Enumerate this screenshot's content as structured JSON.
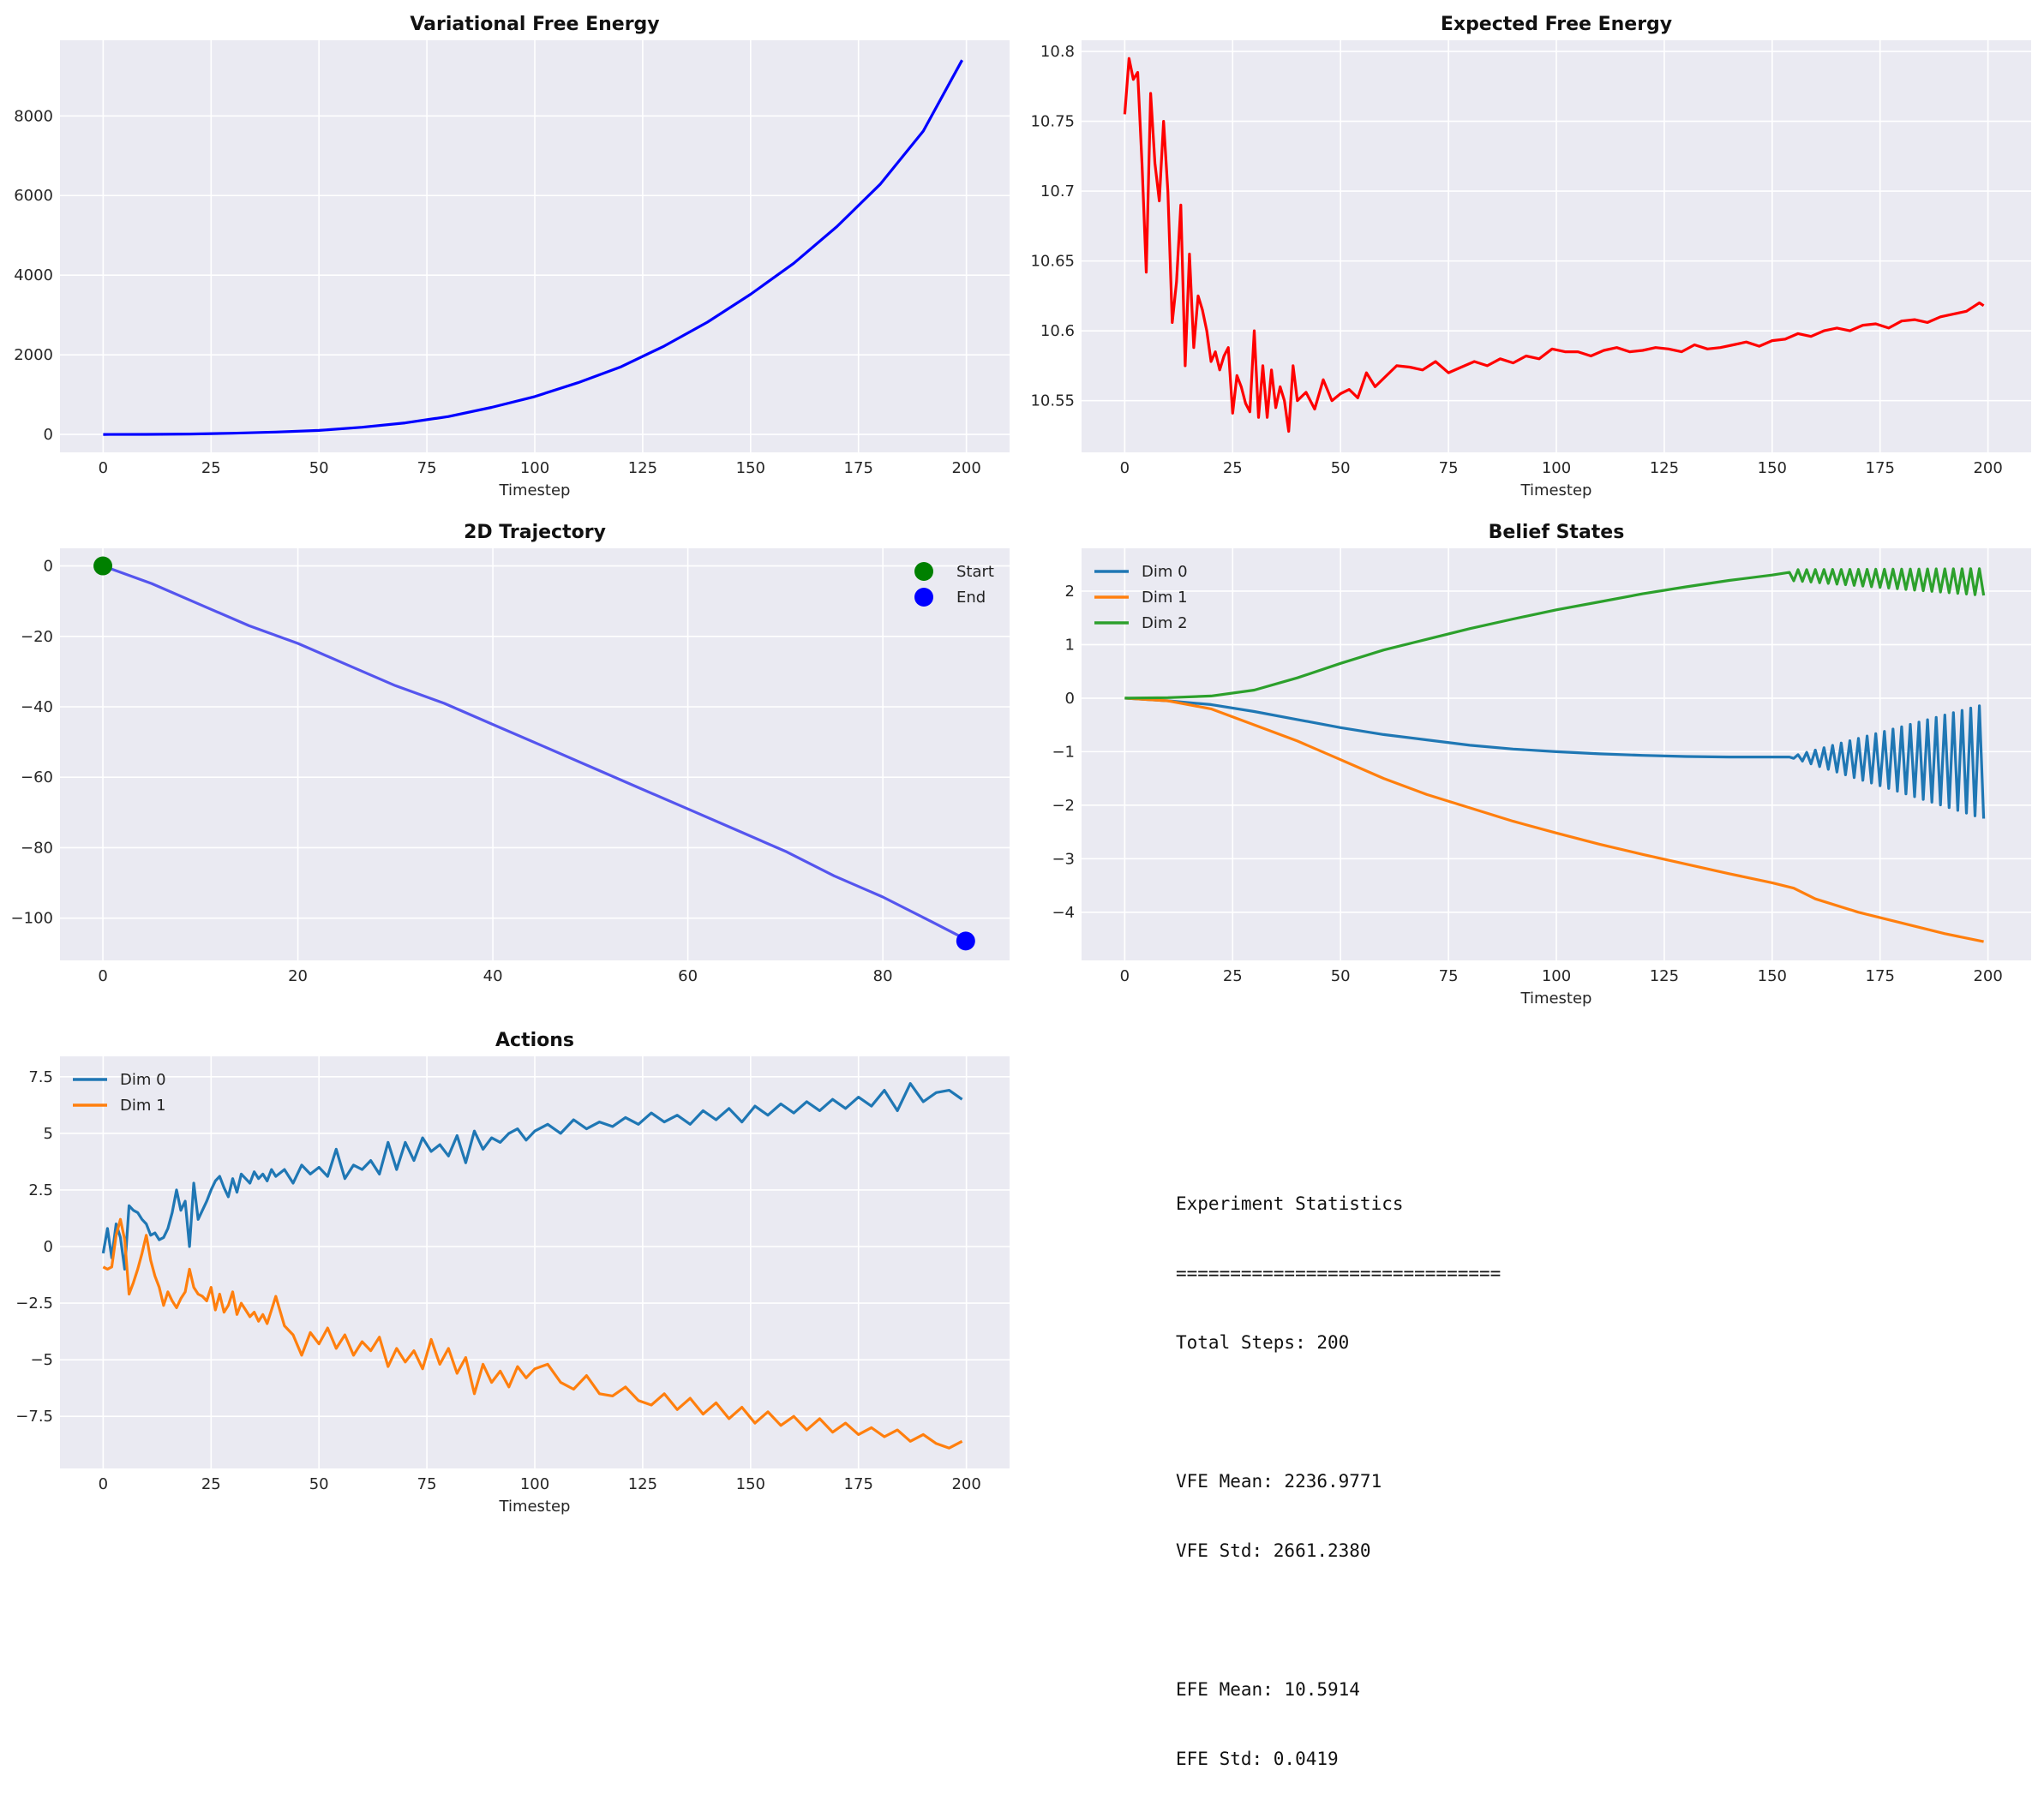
{
  "colors": {
    "axes_bg": "#eaeaf2",
    "grid": "#ffffff",
    "tick_text": "#262626",
    "vfe_line": "#0000ff",
    "efe_line": "#ff0000",
    "trajectory_line": "#5555ee",
    "start_marker": "#008000",
    "end_marker": "#0000ff",
    "dim0": "#1f77b4",
    "dim1": "#ff7f0e",
    "dim2": "#2ca02c"
  },
  "chart_data": [
    {
      "id": "vfe",
      "type": "line",
      "title": "Variational Free Energy",
      "xlabel": "Timestep",
      "ylabel": "",
      "xlim": [
        -10,
        210
      ],
      "ylim": [
        -450,
        9900
      ],
      "xticks": [
        0,
        25,
        50,
        75,
        100,
        125,
        150,
        175,
        200
      ],
      "yticks": [
        0,
        2000,
        4000,
        6000,
        8000
      ],
      "grid": true,
      "series": [
        {
          "color": "vfe_line",
          "x": [
            0,
            10,
            20,
            30,
            40,
            50,
            60,
            70,
            80,
            90,
            100,
            110,
            120,
            130,
            140,
            150,
            160,
            170,
            180,
            190,
            199
          ],
          "y": [
            0,
            2,
            10,
            30,
            60,
            100,
            180,
            290,
            450,
            680,
            950,
            1300,
            1700,
            2220,
            2820,
            3520,
            4300,
            5220,
            6280,
            7620,
            9400
          ]
        }
      ]
    },
    {
      "id": "efe",
      "type": "line",
      "title": "Expected Free Energy",
      "xlabel": "Timestep",
      "ylabel": "",
      "xlim": [
        -10,
        210
      ],
      "ylim": [
        10.513,
        10.808
      ],
      "xticks": [
        0,
        25,
        50,
        75,
        100,
        125,
        150,
        175,
        200
      ],
      "yticks": [
        10.55,
        10.6,
        10.65,
        10.7,
        10.75,
        10.8
      ],
      "grid": true,
      "series": [
        {
          "color": "efe_line",
          "x": [
            0,
            1,
            2,
            3,
            4,
            5,
            6,
            7,
            8,
            9,
            10,
            11,
            12,
            13,
            14,
            15,
            16,
            17,
            18,
            19,
            20,
            21,
            22,
            23,
            24,
            25,
            26,
            27,
            28,
            29,
            30,
            31,
            32,
            33,
            34,
            35,
            36,
            37,
            38,
            39,
            40,
            42,
            44,
            46,
            48,
            50,
            52,
            54,
            56,
            58,
            60,
            63,
            66,
            69,
            72,
            75,
            78,
            81,
            84,
            87,
            90,
            93,
            96,
            99,
            102,
            105,
            108,
            111,
            114,
            117,
            120,
            123,
            126,
            129,
            132,
            135,
            138,
            141,
            144,
            147,
            150,
            153,
            156,
            159,
            162,
            165,
            168,
            171,
            174,
            177,
            180,
            183,
            186,
            189,
            192,
            195,
            198,
            199
          ],
          "y": [
            10.755,
            10.795,
            10.78,
            10.785,
            10.72,
            10.642,
            10.77,
            10.72,
            10.693,
            10.75,
            10.7,
            10.606,
            10.635,
            10.69,
            10.575,
            10.655,
            10.588,
            10.625,
            10.615,
            10.6,
            10.578,
            10.585,
            10.572,
            10.582,
            10.588,
            10.541,
            10.568,
            10.56,
            10.548,
            10.542,
            10.6,
            10.538,
            10.575,
            10.538,
            10.572,
            10.545,
            10.56,
            10.55,
            10.528,
            10.575,
            10.55,
            10.556,
            10.544,
            10.565,
            10.55,
            10.555,
            10.558,
            10.552,
            10.57,
            10.56,
            10.566,
            10.575,
            10.574,
            10.572,
            10.578,
            10.57,
            10.574,
            10.578,
            10.575,
            10.58,
            10.577,
            10.582,
            10.58,
            10.587,
            10.585,
            10.585,
            10.582,
            10.586,
            10.588,
            10.585,
            10.586,
            10.588,
            10.587,
            10.585,
            10.59,
            10.587,
            10.588,
            10.59,
            10.592,
            10.589,
            10.593,
            10.594,
            10.598,
            10.596,
            10.6,
            10.602,
            10.6,
            10.604,
            10.605,
            10.602,
            10.607,
            10.608,
            10.606,
            10.61,
            10.612,
            10.614,
            10.62,
            10.618
          ]
        }
      ]
    },
    {
      "id": "trajectory",
      "type": "line",
      "title": "2D Trajectory",
      "xlabel": "",
      "ylabel": "",
      "xlim": [
        -4.4,
        93
      ],
      "ylim": [
        -112,
        5
      ],
      "xticks": [
        0,
        20,
        40,
        60,
        80
      ],
      "yticks": [
        0,
        -20,
        -40,
        -60,
        -80,
        -100
      ],
      "grid": true,
      "legend": "top-right",
      "legend_entries": [
        "Start",
        "End"
      ],
      "series": [
        {
          "color": "trajectory_line",
          "x": [
            0,
            5,
            10,
            15,
            20,
            25,
            30,
            35,
            40,
            45,
            50,
            55,
            60,
            65,
            70,
            75,
            80,
            85,
            88.5
          ],
          "y": [
            0,
            -5,
            -11,
            -17,
            -22,
            -28,
            -34,
            -39,
            -45,
            -51,
            -57,
            -63,
            -69,
            -75,
            -81,
            -88,
            -94,
            -101,
            -106
          ]
        }
      ],
      "markers": [
        {
          "label": "Start",
          "x": 0,
          "y": 0,
          "color": "start_marker"
        },
        {
          "label": "End",
          "x": 88.5,
          "y": -106.5,
          "color": "end_marker"
        }
      ]
    },
    {
      "id": "beliefs",
      "type": "line",
      "title": "Belief States",
      "xlabel": "Timestep",
      "ylabel": "",
      "xlim": [
        -10,
        210
      ],
      "ylim": [
        -4.9,
        2.8
      ],
      "xticks": [
        0,
        25,
        50,
        75,
        100,
        125,
        150,
        175,
        200
      ],
      "yticks": [
        2,
        1,
        0,
        -1,
        -2,
        -3,
        -4
      ],
      "grid": true,
      "legend": "top-left",
      "legend_entries": [
        "Dim 0",
        "Dim 1",
        "Dim 2"
      ],
      "series": [
        {
          "name": "Dim 0",
          "color": "dim0",
          "x": [
            0,
            10,
            20,
            30,
            40,
            50,
            60,
            70,
            80,
            90,
            100,
            110,
            120,
            130,
            140,
            150,
            154
          ],
          "y": [
            0,
            -0.05,
            -0.12,
            -0.25,
            -0.4,
            -0.55,
            -0.68,
            -0.78,
            -0.88,
            -0.95,
            -1.0,
            -1.04,
            -1.07,
            -1.09,
            -1.1,
            -1.1,
            -1.1
          ],
          "oscillation": {
            "from": 154,
            "to": 199,
            "start_lo": -1.1,
            "start_hi": -1.1,
            "end_lo": -2.25,
            "end_hi": -0.12
          }
        },
        {
          "name": "Dim 1",
          "color": "dim1",
          "x": [
            0,
            10,
            20,
            30,
            40,
            50,
            60,
            70,
            80,
            90,
            100,
            110,
            120,
            130,
            140,
            150,
            155,
            160,
            170,
            180,
            190,
            199
          ],
          "y": [
            0,
            -0.05,
            -0.2,
            -0.5,
            -0.8,
            -1.15,
            -1.5,
            -1.8,
            -2.05,
            -2.3,
            -2.52,
            -2.73,
            -2.92,
            -3.1,
            -3.28,
            -3.45,
            -3.55,
            -3.75,
            -4.0,
            -4.2,
            -4.4,
            -4.55
          ]
        },
        {
          "name": "Dim 2",
          "color": "dim2",
          "x": [
            0,
            10,
            20,
            30,
            40,
            50,
            60,
            70,
            80,
            90,
            100,
            110,
            120,
            130,
            140,
            150,
            154
          ],
          "y": [
            0,
            0.01,
            0.04,
            0.15,
            0.38,
            0.65,
            0.9,
            1.1,
            1.3,
            1.48,
            1.65,
            1.8,
            1.95,
            2.08,
            2.2,
            2.3,
            2.35
          ],
          "oscillation": {
            "from": 154,
            "to": 199,
            "start_lo": 2.2,
            "start_hi": 2.4,
            "end_lo": 1.92,
            "end_hi": 2.42
          }
        }
      ]
    },
    {
      "id": "actions",
      "type": "line",
      "title": "Actions",
      "xlabel": "Timestep",
      "ylabel": "",
      "xlim": [
        -10,
        210
      ],
      "ylim": [
        -9.8,
        8.4
      ],
      "xticks": [
        0,
        25,
        50,
        75,
        100,
        125,
        150,
        175,
        200
      ],
      "yticks": [
        7.5,
        5.0,
        2.5,
        0.0,
        -2.5,
        -5.0,
        -7.5
      ],
      "grid": true,
      "legend": "top-left",
      "legend_entries": [
        "Dim 0",
        "Dim 1"
      ],
      "series": [
        {
          "name": "Dim 0",
          "color": "dim0",
          "x": [
            0,
            1,
            2,
            3,
            4,
            5,
            6,
            7,
            8,
            9,
            10,
            11,
            12,
            13,
            14,
            15,
            16,
            17,
            18,
            19,
            20,
            21,
            22,
            23,
            24,
            25,
            26,
            27,
            28,
            29,
            30,
            31,
            32,
            33,
            34,
            35,
            36,
            37,
            38,
            39,
            40,
            42,
            44,
            46,
            48,
            50,
            52,
            54,
            56,
            58,
            60,
            62,
            64,
            66,
            68,
            70,
            72,
            74,
            76,
            78,
            80,
            82,
            84,
            86,
            88,
            90,
            92,
            94,
            96,
            98,
            100,
            103,
            106,
            109,
            112,
            115,
            118,
            121,
            124,
            127,
            130,
            133,
            136,
            139,
            142,
            145,
            148,
            151,
            154,
            157,
            160,
            163,
            166,
            169,
            172,
            175,
            178,
            181,
            184,
            187,
            190,
            193,
            196,
            199
          ],
          "y": [
            -0.3,
            0.8,
            -0.5,
            1.0,
            0.4,
            -1.0,
            1.8,
            1.6,
            1.5,
            1.2,
            1.0,
            0.5,
            0.6,
            0.3,
            0.4,
            0.8,
            1.5,
            2.5,
            1.6,
            2.0,
            0.0,
            2.8,
            1.2,
            1.6,
            2.0,
            2.5,
            2.9,
            3.1,
            2.6,
            2.2,
            3.0,
            2.4,
            3.2,
            3.0,
            2.8,
            3.3,
            3.0,
            3.2,
            2.9,
            3.4,
            3.1,
            3.4,
            2.8,
            3.6,
            3.2,
            3.5,
            3.1,
            4.3,
            3.0,
            3.6,
            3.4,
            3.8,
            3.2,
            4.6,
            3.4,
            4.6,
            3.8,
            4.8,
            4.2,
            4.5,
            4.0,
            4.9,
            3.7,
            5.1,
            4.3,
            4.8,
            4.6,
            5.0,
            5.2,
            4.7,
            5.1,
            5.4,
            5.0,
            5.6,
            5.2,
            5.5,
            5.3,
            5.7,
            5.4,
            5.9,
            5.5,
            5.8,
            5.4,
            6.0,
            5.6,
            6.1,
            5.5,
            6.2,
            5.8,
            6.3,
            5.9,
            6.4,
            6.0,
            6.5,
            6.1,
            6.6,
            6.2,
            6.9,
            6.0,
            7.2,
            6.4,
            6.8,
            6.9,
            6.5
          ]
        },
        {
          "name": "Dim 1",
          "color": "dim1",
          "x": [
            0,
            1,
            2,
            3,
            4,
            5,
            6,
            7,
            8,
            9,
            10,
            11,
            12,
            13,
            14,
            15,
            16,
            17,
            18,
            19,
            20,
            21,
            22,
            23,
            24,
            25,
            26,
            27,
            28,
            29,
            30,
            31,
            32,
            33,
            34,
            35,
            36,
            37,
            38,
            39,
            40,
            42,
            44,
            46,
            48,
            50,
            52,
            54,
            56,
            58,
            60,
            62,
            64,
            66,
            68,
            70,
            72,
            74,
            76,
            78,
            80,
            82,
            84,
            86,
            88,
            90,
            92,
            94,
            96,
            98,
            100,
            103,
            106,
            109,
            112,
            115,
            118,
            121,
            124,
            127,
            130,
            133,
            136,
            139,
            142,
            145,
            148,
            151,
            154,
            157,
            160,
            163,
            166,
            169,
            172,
            175,
            178,
            181,
            184,
            187,
            190,
            193,
            196,
            199
          ],
          "y": [
            -0.9,
            -1.0,
            -0.9,
            0.5,
            1.2,
            0.3,
            -2.1,
            -1.6,
            -1.0,
            -0.3,
            0.5,
            -0.6,
            -1.3,
            -1.8,
            -2.6,
            -2.0,
            -2.4,
            -2.7,
            -2.3,
            -2.0,
            -1.0,
            -1.8,
            -2.1,
            -2.2,
            -2.4,
            -1.8,
            -2.8,
            -2.1,
            -2.9,
            -2.6,
            -2.0,
            -3.0,
            -2.5,
            -2.8,
            -3.1,
            -2.9,
            -3.3,
            -3.0,
            -3.4,
            -2.8,
            -2.2,
            -3.5,
            -3.9,
            -4.8,
            -3.8,
            -4.3,
            -3.6,
            -4.5,
            -3.9,
            -4.8,
            -4.2,
            -4.6,
            -4.0,
            -5.3,
            -4.5,
            -5.1,
            -4.6,
            -5.4,
            -4.1,
            -5.2,
            -4.5,
            -5.6,
            -4.9,
            -6.5,
            -5.2,
            -6.0,
            -5.5,
            -6.2,
            -5.3,
            -5.8,
            -5.4,
            -5.2,
            -6.0,
            -6.3,
            -5.7,
            -6.5,
            -6.6,
            -6.2,
            -6.8,
            -7.0,
            -6.5,
            -7.2,
            -6.7,
            -7.4,
            -6.9,
            -7.6,
            -7.1,
            -7.8,
            -7.3,
            -7.9,
            -7.5,
            -8.1,
            -7.6,
            -8.2,
            -7.8,
            -8.3,
            -8.0,
            -8.4,
            -8.1,
            -8.6,
            -8.3,
            -8.7,
            -8.9,
            -8.6
          ]
        }
      ]
    }
  ],
  "stats": {
    "title": "Experiment Statistics",
    "divider": "==============================",
    "total_steps": "Total Steps: 200",
    "vfe_mean": "VFE Mean: 2236.9771",
    "vfe_std": "VFE Std: 2661.2380",
    "efe_mean": "EFE Mean: 10.5914",
    "efe_std": "EFE Std: 0.0419"
  }
}
